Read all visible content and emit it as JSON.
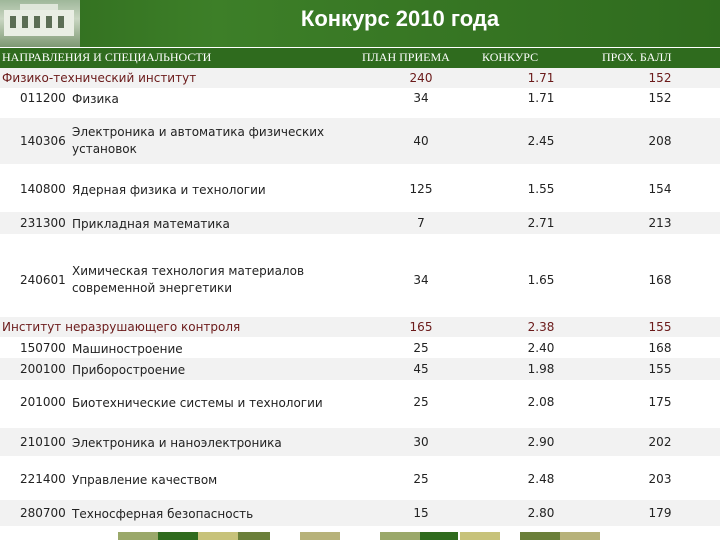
{
  "title": "Конкурс 2010 года",
  "columns": {
    "direction": "НАПРАВЛЕНИЯ И СПЕЦИАЛЬНОСТИ",
    "plan": "ПЛАН ПРИЕМА",
    "competition": "КОНКУРС",
    "pass_score": "ПРОХ. БАЛЛ"
  },
  "rows": [
    {
      "type": "group",
      "name": "Физико-технический институт",
      "plan": "240",
      "competition": "1.71",
      "score": "152"
    },
    {
      "type": "item",
      "code": "011200",
      "name": "Физика",
      "plan": "34",
      "competition": "1.71",
      "score": "152"
    },
    {
      "type": "item",
      "code": "140306",
      "name": "Электроника и автоматика физических",
      "name2": "установок",
      "plan": "40",
      "competition": "2.45",
      "score": "208"
    },
    {
      "type": "item",
      "code": "140800",
      "name": "Ядерная физика и технологии",
      "plan": "125",
      "competition": "1.55",
      "score": "154"
    },
    {
      "type": "item",
      "code": "231300",
      "name": "Прикладная математика",
      "plan": "7",
      "competition": "2.71",
      "score": "213"
    },
    {
      "type": "item",
      "code": "240601",
      "name": "Химическая технология материалов",
      "name2": "современной энергетики",
      "plan": "34",
      "competition": "1.65",
      "score": "168"
    },
    {
      "type": "group",
      "name": "Институт неразрушающего контроля",
      "plan": "165",
      "competition": "2.38",
      "score": "155"
    },
    {
      "type": "item",
      "code": "150700",
      "name": "Машиностроение",
      "plan": "25",
      "competition": "2.40",
      "score": "168"
    },
    {
      "type": "item",
      "code": "200100",
      "name": "Приборостроение",
      "plan": "45",
      "competition": "1.98",
      "score": "155"
    },
    {
      "type": "item",
      "code": "201000",
      "name": "Биотехнические системы и технологии",
      "plan": "25",
      "competition": "2.08",
      "score": "175"
    },
    {
      "type": "item",
      "code": "210100",
      "name": "Электроника и наноэлектроника",
      "plan": "30",
      "competition": "2.90",
      "score": "202"
    },
    {
      "type": "item",
      "code": "221400",
      "name": "Управление качеством",
      "plan": "25",
      "competition": "2.48",
      "score": "203"
    },
    {
      "type": "item",
      "code": "280700",
      "name": "Техносферная безопасность",
      "plan": "15",
      "competition": "2.80",
      "score": "179"
    }
  ],
  "colors": {
    "header_green": "#2f6b1e",
    "group_text": "#6b1a1a",
    "footer": [
      "#9aa86a",
      "#2f6b1e",
      "#c7c27a",
      "#6b7f3a",
      "#b7b27a"
    ]
  }
}
